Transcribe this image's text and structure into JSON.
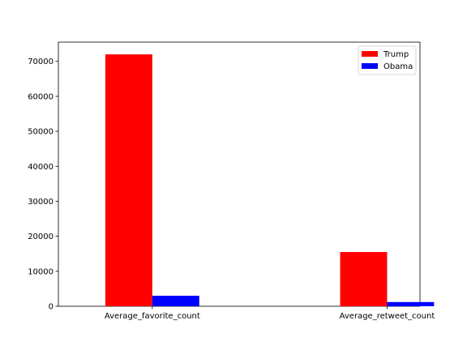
{
  "chart_data": {
    "type": "bar",
    "title": "",
    "xlabel": "",
    "ylabel": "",
    "categories": [
      "Average_favorite_count",
      "Average_retweet_count"
    ],
    "series": [
      {
        "name": "Trump",
        "color": "#ff0000",
        "values": [
          72000,
          15500
        ]
      },
      {
        "name": "Obama",
        "color": "#0000ff",
        "values": [
          3000,
          1200
        ]
      }
    ],
    "ylim": [
      0,
      75500
    ],
    "yticks": [
      0,
      10000,
      20000,
      30000,
      40000,
      50000,
      60000,
      70000
    ],
    "ytick_labels": [
      "0",
      "10000",
      "20000",
      "30000",
      "40000",
      "50000",
      "60000",
      "70000"
    ],
    "grid": false,
    "legend_position": "top-right"
  }
}
